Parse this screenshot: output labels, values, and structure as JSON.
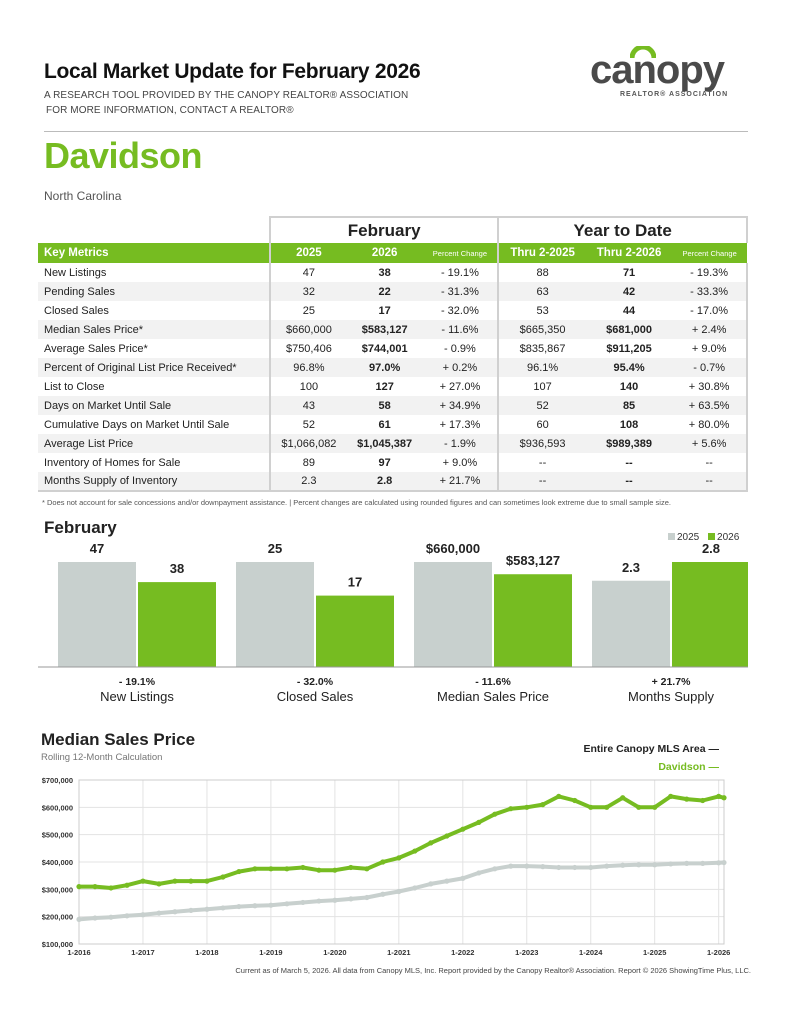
{
  "header": {
    "title": "Local Market Update for February 2026",
    "sub1": "A RESEARCH TOOL PROVIDED BY THE CANOPY REALTOR® ASSOCIATION",
    "sub2": "FOR MORE INFORMATION, CONTACT A REALTOR®",
    "logo_word": "canopy",
    "logo_tag": "REALTOR® ASSOCIATION",
    "area": "Davidson",
    "state": "North Carolina"
  },
  "colors": {
    "green": "#76bc21",
    "gray": "#c8d0ce"
  },
  "table": {
    "group_feb": "February",
    "group_ytd": "Year to Date",
    "headers": [
      "Key Metrics",
      "2025",
      "2026",
      "Percent Change",
      "Thru 2-2025",
      "Thru 2-2026",
      "Percent Change"
    ],
    "rows": [
      [
        "New Listings",
        "47",
        "38",
        "- 19.1%",
        "88",
        "71",
        "- 19.3%"
      ],
      [
        "Pending Sales",
        "32",
        "22",
        "- 31.3%",
        "63",
        "42",
        "- 33.3%"
      ],
      [
        "Closed Sales",
        "25",
        "17",
        "- 32.0%",
        "53",
        "44",
        "- 17.0%"
      ],
      [
        "Median Sales Price*",
        "$660,000",
        "$583,127",
        "- 11.6%",
        "$665,350",
        "$681,000",
        "+ 2.4%"
      ],
      [
        "Average Sales Price*",
        "$750,406",
        "$744,001",
        "- 0.9%",
        "$835,867",
        "$911,205",
        "+ 9.0%"
      ],
      [
        "Percent of Original List Price Received*",
        "96.8%",
        "97.0%",
        "+ 0.2%",
        "96.1%",
        "95.4%",
        "- 0.7%"
      ],
      [
        "List to Close",
        "100",
        "127",
        "+ 27.0%",
        "107",
        "140",
        "+ 30.8%"
      ],
      [
        "Days on Market Until Sale",
        "43",
        "58",
        "+ 34.9%",
        "52",
        "85",
        "+ 63.5%"
      ],
      [
        "Cumulative Days on Market Until Sale",
        "52",
        "61",
        "+ 17.3%",
        "60",
        "108",
        "+ 80.0%"
      ],
      [
        "Average List Price",
        "$1,066,082",
        "$1,045,387",
        "- 1.9%",
        "$936,593",
        "$989,389",
        "+ 5.6%"
      ],
      [
        "Inventory of Homes for Sale",
        "89",
        "97",
        "+ 9.0%",
        "--",
        "--",
        "--"
      ],
      [
        "Months Supply of Inventory",
        "2.3",
        "2.8",
        "+ 21.7%",
        "--",
        "--",
        "--"
      ]
    ],
    "footnote": "* Does not account for sale concessions and/or downpayment assistance.  |  Percent changes are calculated using rounded figures and can sometimes look extreme due to small sample size."
  },
  "chart_data": [
    {
      "type": "bar",
      "title": "February",
      "legend": [
        "2025",
        "2026"
      ],
      "colors": [
        "#c8d0ce",
        "#76bc21"
      ],
      "groups": [
        {
          "category": "New Listings",
          "values": [
            47,
            38
          ],
          "labels": [
            "47",
            "38"
          ],
          "change": "- 19.1%"
        },
        {
          "category": "Closed Sales",
          "values": [
            25,
            17
          ],
          "labels": [
            "25",
            "17"
          ],
          "change": "- 32.0%"
        },
        {
          "category": "Median Sales Price",
          "values": [
            660000,
            583127
          ],
          "labels": [
            "$660,000",
            "$583,127"
          ],
          "change": "- 11.6%"
        },
        {
          "category": "Months Supply",
          "values": [
            2.3,
            2.8
          ],
          "labels": [
            "2.3",
            "2.8"
          ],
          "change": "+ 21.7%"
        }
      ]
    },
    {
      "type": "line",
      "title": "Median Sales Price",
      "subtitle": "Rolling 12-Month Calculation",
      "ylim": [
        100000,
        700000
      ],
      "yticks": [
        "$100,000",
        "$200,000",
        "$300,000",
        "$400,000",
        "$500,000",
        "$600,000",
        "$700,000"
      ],
      "xticks": [
        "1-2016",
        "1-2017",
        "1-2018",
        "1-2019",
        "1-2020",
        "1-2021",
        "1-2022",
        "1-2023",
        "1-2024",
        "1-2025",
        "1-2026"
      ],
      "x_start": "2016-01",
      "x_step": "quarterly, final point 2026-02",
      "series": [
        {
          "name": "Entire Canopy MLS Area",
          "color": "#c8d0ce",
          "values": [
            190000,
            195000,
            198000,
            203000,
            207000,
            213000,
            218000,
            223000,
            227000,
            232000,
            237000,
            240000,
            242000,
            247000,
            252000,
            257000,
            260000,
            265000,
            270000,
            282000,
            292000,
            305000,
            320000,
            330000,
            340000,
            360000,
            375000,
            385000,
            385000,
            383000,
            380000,
            380000,
            380000,
            385000,
            388000,
            390000,
            390000,
            393000,
            395000,
            395000,
            397000,
            398000
          ]
        },
        {
          "name": "Davidson",
          "color": "#76bc21",
          "values": [
            310000,
            310000,
            305000,
            315000,
            330000,
            320000,
            330000,
            330000,
            330000,
            345000,
            365000,
            375000,
            375000,
            375000,
            380000,
            370000,
            370000,
            380000,
            375000,
            400000,
            415000,
            440000,
            470000,
            495000,
            520000,
            545000,
            575000,
            595000,
            600000,
            610000,
            640000,
            625000,
            600000,
            600000,
            635000,
            600000,
            600000,
            640000,
            630000,
            625000,
            640000,
            635000
          ]
        }
      ]
    }
  ],
  "footer": "Current as of March 5, 2026. All data from Canopy MLS, Inc. Report provided by the Canopy Realtor® Association. Report © 2026 ShowingTime Plus, LLC."
}
